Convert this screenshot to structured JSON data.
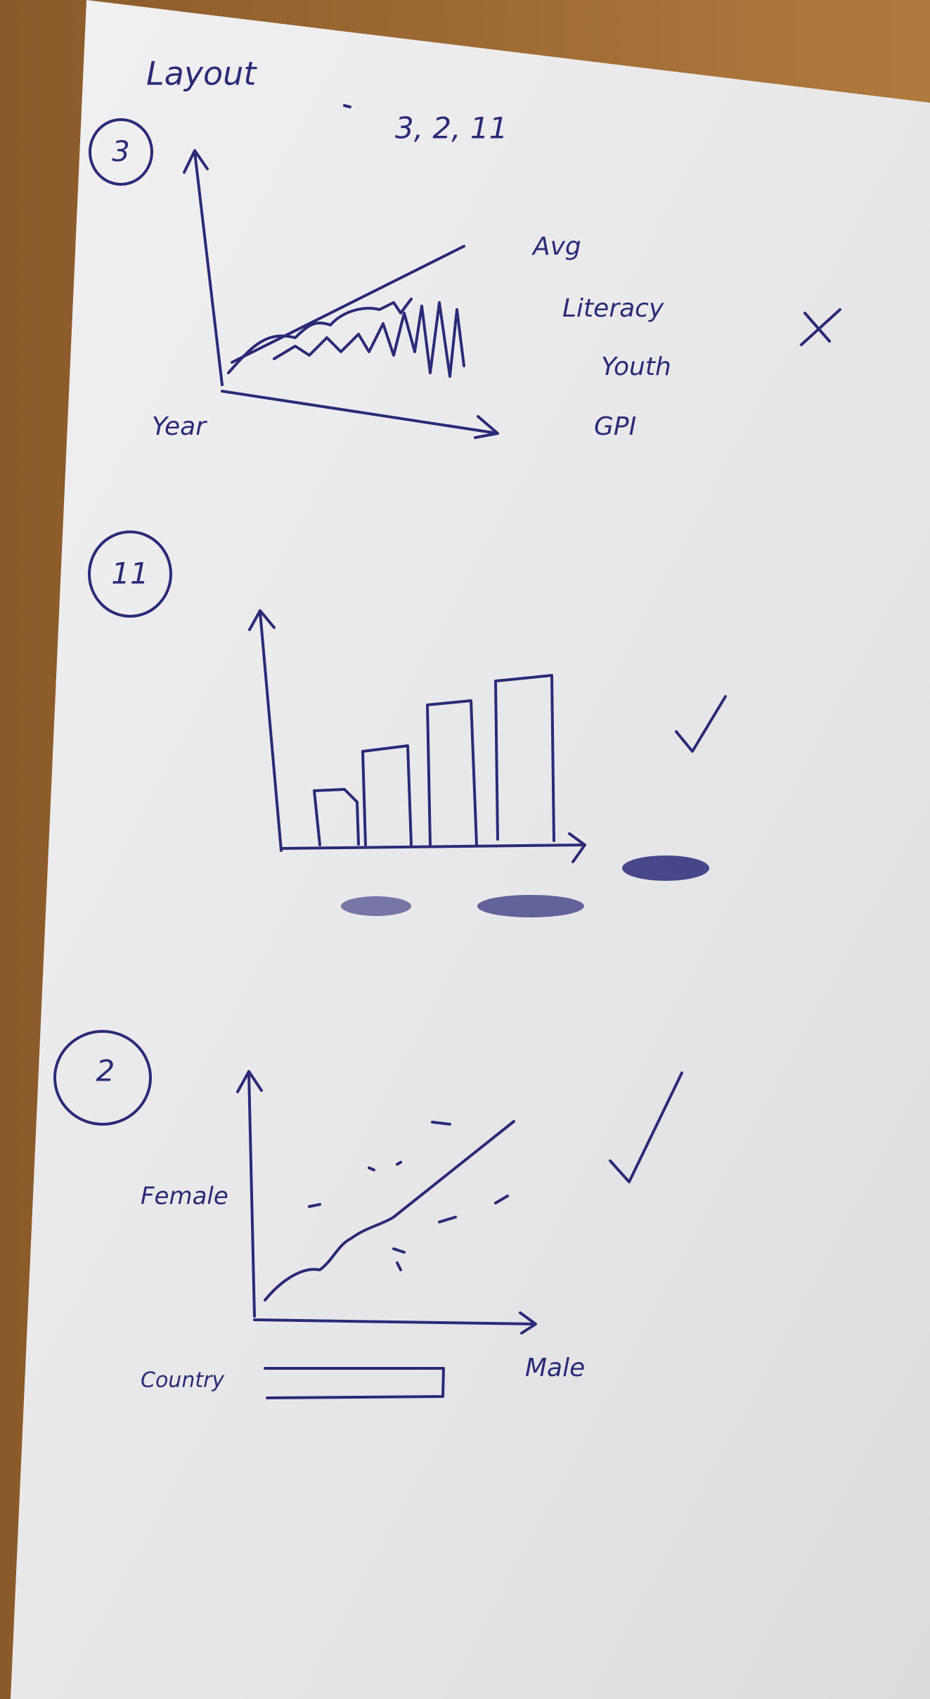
{
  "header": {
    "title": "Layout",
    "order": "3, 2, 11"
  },
  "sketches": [
    {
      "number": "3",
      "x_label": "Year",
      "legend": [
        "Avg",
        "Literacy",
        "Youth",
        "GPI"
      ]
    },
    {
      "number": "11"
    },
    {
      "number": "2",
      "y_label": "Female",
      "x_label": "Male",
      "input_label": "Country"
    }
  ]
}
